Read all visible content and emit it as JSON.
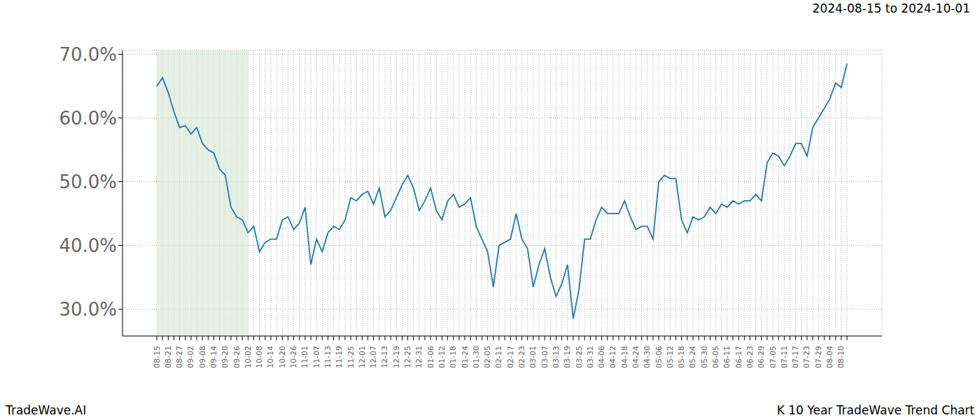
{
  "chart_data": {
    "type": "line",
    "title": "2024-08-15 to 2024-10-01",
    "annotations": [
      "TradeWave.AI",
      "K 10 Year TradeWave Trend Chart"
    ],
    "categories": [
      "08-15",
      null,
      "08-21",
      null,
      "08-27",
      null,
      "09-02",
      null,
      "09-08",
      null,
      "09-14",
      null,
      "09-20",
      null,
      "09-26",
      null,
      "10-02",
      null,
      "10-08",
      null,
      "10-14",
      null,
      "10-20",
      null,
      "10-26",
      null,
      "11-01",
      null,
      "11-07",
      null,
      "11-13",
      null,
      "11-19",
      null,
      "11-25",
      null,
      "12-01",
      null,
      "12-07",
      null,
      "12-13",
      null,
      "12-19",
      null,
      "12-25",
      null,
      "12-31",
      null,
      "01-06",
      null,
      "01-12",
      null,
      "01-18",
      null,
      "01-24",
      null,
      "01-30",
      null,
      "02-05",
      null,
      "02-11",
      null,
      "02-17",
      null,
      "02-23",
      null,
      "03-01",
      null,
      "03-07",
      null,
      "03-13",
      null,
      "03-19",
      null,
      "03-25",
      null,
      "03-31",
      null,
      "04-06",
      null,
      "04-12",
      null,
      "04-18",
      null,
      "04-24",
      null,
      "04-30",
      null,
      "05-06",
      null,
      "05-12",
      null,
      "05-18",
      null,
      "05-24",
      null,
      "05-30",
      null,
      "06-05",
      null,
      "06-11",
      null,
      "06-17",
      null,
      "06-23",
      null,
      "06-29",
      null,
      "07-05",
      null,
      "07-11",
      null,
      "07-17",
      null,
      "07-23",
      null,
      "07-29",
      null,
      "08-04",
      null,
      "08-10",
      null
    ],
    "values": [
      65,
      66.3,
      64,
      61,
      58.5,
      58.8,
      57.5,
      58.5,
      56,
      55,
      54.5,
      52,
      51,
      46,
      44.5,
      44,
      42,
      43,
      39,
      40.5,
      41,
      41,
      44,
      44.5,
      42.5,
      43.5,
      46,
      37,
      41,
      39,
      42,
      43,
      42.5,
      44,
      47.5,
      47,
      48,
      48.5,
      46.5,
      49,
      44.5,
      45.5,
      47.5,
      49.5,
      51,
      49,
      45.5,
      47,
      49,
      45.5,
      44,
      47,
      48,
      46,
      46.5,
      47.5,
      43,
      41,
      39,
      33.5,
      40,
      40.5,
      41,
      45,
      41,
      39.5,
      33.5,
      37,
      39.5,
      35,
      32,
      34,
      37,
      28.5,
      33,
      41,
      41,
      44,
      46,
      45,
      45,
      45,
      47,
      44.5,
      42.5,
      43,
      43,
      41,
      50,
      51,
      50.5,
      50.5,
      44,
      42,
      44.5,
      44,
      44.5,
      46,
      45,
      46.5,
      46,
      47,
      46.5,
      47,
      47,
      48,
      47,
      53,
      54.5,
      54,
      52.5,
      54,
      56,
      56,
      54,
      58.5,
      60,
      61.5,
      63,
      65.5,
      64.8,
      68.5
    ],
    "shaded": [
      "08-15",
      "10-02"
    ],
    "color": "#1f77b4",
    "ylim": [
      25.8,
      70.6
    ],
    "yticks": [
      {
        "value": 30,
        "label": "30.0%"
      },
      {
        "value": 40,
        "label": "40.0%"
      },
      {
        "value": 50,
        "label": "50.0%"
      },
      {
        "value": 60,
        "label": "60.0%"
      },
      {
        "value": 70,
        "label": "70.0%"
      }
    ],
    "grid": true
  }
}
